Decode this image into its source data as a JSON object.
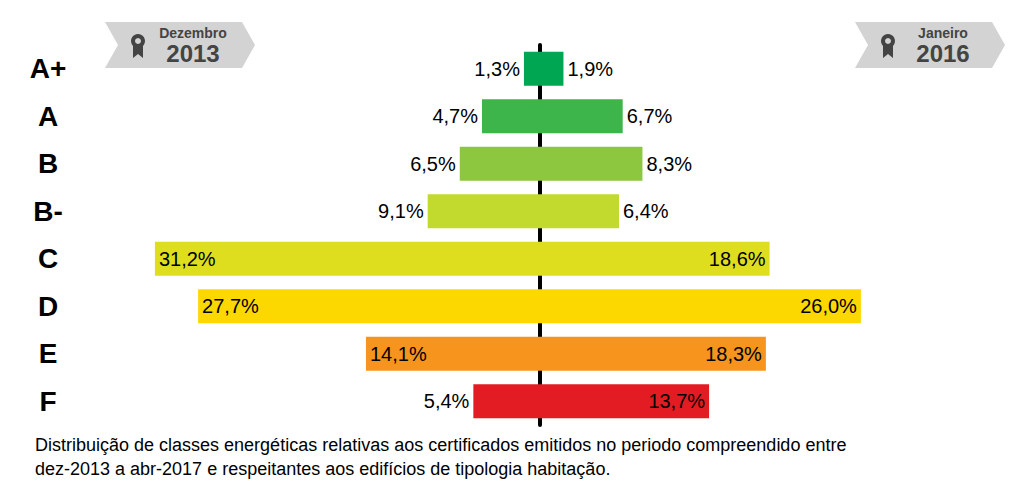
{
  "chart_data": {
    "type": "bar",
    "orientation": "horizontal",
    "categories": [
      "A+",
      "A",
      "B",
      "B-",
      "C",
      "D",
      "E",
      "F"
    ],
    "colors": [
      "#00a651",
      "#3db54a",
      "#8dc63f",
      "#c2d92e",
      "#dede1f",
      "#fdd800",
      "#f7941d",
      "#e31b23"
    ],
    "series": [
      {
        "name": "Dezembro 2013",
        "values": [
          1.3,
          4.7,
          6.5,
          9.1,
          31.2,
          27.7,
          14.1,
          5.4
        ],
        "value_labels": [
          "1,3%",
          "4,7%",
          "6,5%",
          "9,1%",
          "31,2%",
          "27,7%",
          "14,1%",
          "5,4%"
        ]
      },
      {
        "name": "Janeiro 2016",
        "values": [
          1.9,
          6.7,
          8.3,
          6.4,
          18.6,
          26.0,
          18.3,
          13.7
        ],
        "value_labels": [
          "1,9%",
          "6,7%",
          "8,3%",
          "6,4%",
          "18,6%",
          "26,0%",
          "18,3%",
          "13,7%"
        ]
      }
    ],
    "xlim": [
      0,
      35
    ],
    "xticks": [
      0,
      35
    ],
    "data_labels": true,
    "tick_labels": "y",
    "grid": false,
    "caption": "Distribuição de classes energéticas relativas aos certificados emitidos no periodo compreendido entre dez-2013 a abr-2017 e respeitantes aos edifícios de tipologia habitação."
  }
}
